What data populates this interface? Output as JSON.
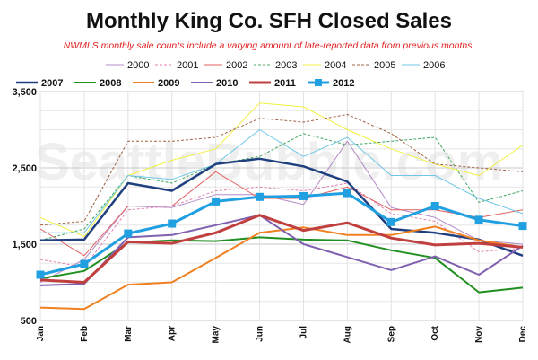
{
  "chart_data": {
    "type": "line",
    "title": "Monthly King Co. SFH Closed Sales",
    "subtitle": "NWMLS monthly sale counts include a varying amount of late-reported data from previous months.",
    "watermark": "SeattleBubble.com",
    "xlabel": "",
    "ylabel": "",
    "categories": [
      "Jan",
      "Feb",
      "Mar",
      "Apr",
      "May",
      "Jun",
      "Jul",
      "Aug",
      "Sep",
      "Oct",
      "Nov",
      "Dec"
    ],
    "ylim": [
      500,
      3500
    ],
    "yticks": [
      "500",
      "1,500",
      "2,500",
      "3,500"
    ],
    "ytick_values": [
      500,
      1500,
      2500,
      3500
    ],
    "grid": true,
    "legend_position": "top",
    "series": [
      {
        "name": "2000",
        "color": "#b58cc8",
        "style": "solid",
        "width": 1,
        "values": [
          1000,
          1300,
          2000,
          1980,
          2150,
          2150,
          2020,
          2850,
          1980,
          1850,
          1550,
          1500
        ]
      },
      {
        "name": "2001",
        "color": "#e080b0",
        "style": "dashed",
        "width": 1,
        "values": [
          1300,
          1200,
          1950,
          2000,
          2200,
          2250,
          2200,
          2300,
          1900,
          1800,
          1400,
          1450
        ]
      },
      {
        "name": "2002",
        "color": "#e06060",
        "style": "solid",
        "width": 1,
        "values": [
          1700,
          1350,
          2000,
          2000,
          2450,
          2100,
          2100,
          2250,
          1950,
          1950,
          1850,
          1950
        ]
      },
      {
        "name": "2003",
        "color": "#40a860",
        "style": "dashed",
        "width": 1,
        "values": [
          1550,
          1700,
          2400,
          2300,
          2550,
          2650,
          2950,
          2800,
          2850,
          2900,
          2050,
          2200
        ]
      },
      {
        "name": "2004",
        "color": "#f0f040",
        "style": "solid",
        "width": 1,
        "values": [
          1850,
          1600,
          2400,
          2600,
          2750,
          3350,
          3300,
          3000,
          2750,
          2550,
          2400,
          2800
        ]
      },
      {
        "name": "2005",
        "color": "#a06040",
        "style": "dashed",
        "width": 1,
        "values": [
          1750,
          1800,
          2850,
          2850,
          2900,
          3150,
          3100,
          3200,
          2950,
          2550,
          2500,
          2450
        ]
      },
      {
        "name": "2006",
        "color": "#70c8e8",
        "style": "solid",
        "width": 1,
        "values": [
          1650,
          1650,
          2400,
          2350,
          2550,
          3000,
          2650,
          2900,
          2400,
          2400,
          2100,
          1900
        ]
      },
      {
        "name": "2007",
        "color": "#204080",
        "style": "solid",
        "width": 2.5,
        "values": [
          1550,
          1560,
          2300,
          2200,
          2550,
          2620,
          2520,
          2320,
          1700,
          1650,
          1560,
          1350
        ]
      },
      {
        "name": "2008",
        "color": "#209020",
        "style": "solid",
        "width": 2,
        "values": [
          1050,
          1150,
          1520,
          1550,
          1540,
          1590,
          1560,
          1550,
          1420,
          1320,
          870,
          930
        ]
      },
      {
        "name": "2009",
        "color": "#f08020",
        "style": "solid",
        "width": 2,
        "values": [
          670,
          650,
          970,
          1000,
          1320,
          1650,
          1720,
          1620,
          1620,
          1730,
          1550,
          1460
        ]
      },
      {
        "name": "2010",
        "color": "#8060b0",
        "style": "solid",
        "width": 2,
        "values": [
          960,
          980,
          1590,
          1620,
          1750,
          1880,
          1500,
          1330,
          1160,
          1340,
          1100,
          1480
        ]
      },
      {
        "name": "2011",
        "color": "#c04040",
        "style": "solid",
        "width": 3,
        "values": [
          1030,
          1000,
          1530,
          1510,
          1650,
          1880,
          1680,
          1780,
          1580,
          1490,
          1510,
          1460
        ]
      },
      {
        "name": "2012",
        "color": "#20a0e0",
        "style": "dashed-marker",
        "width": 3,
        "values": [
          1100,
          1240,
          1640,
          1770,
          2060,
          2120,
          2130,
          2170,
          1790,
          2000,
          1820,
          1740
        ]
      }
    ]
  }
}
